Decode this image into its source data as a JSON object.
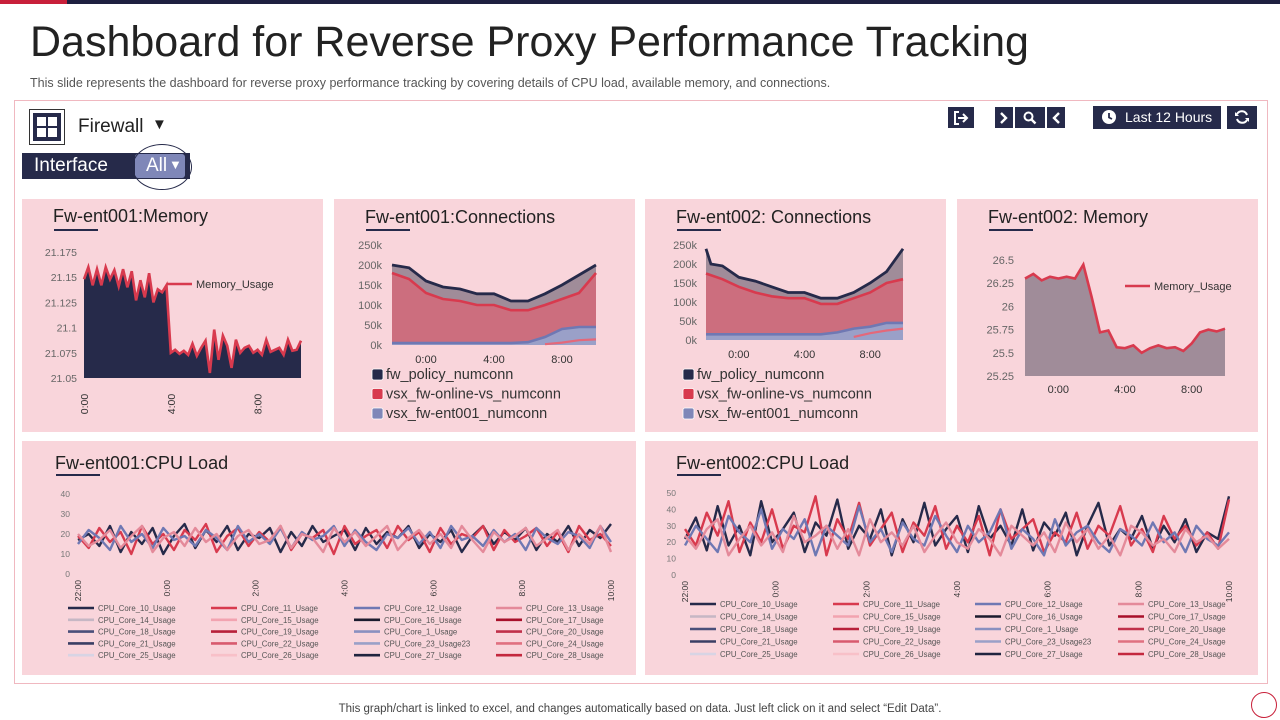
{
  "header": {
    "title": "Dashboard for Reverse Proxy Performance Tracking",
    "subtitle": "This slide represents the dashboard for reverse  proxy performance  tracking by covering details of CPU load, available  memory,  and connections."
  },
  "toolbar": {
    "selector_label": "Firewall",
    "interface_label": "Interface",
    "interface_value": "All",
    "time_range_label": "Last 12 Hours"
  },
  "footer": {
    "note": "This graph/chart is linked to excel,  and changes automatically based on data. Just left click on it and select “Edit Data”."
  },
  "colors": {
    "navy": "#262a4a",
    "red": "#d83a4e",
    "periwinkle": "#7f87b8",
    "panel_bg": "#f9d5db",
    "frame_border": "#f0b8c0"
  },
  "chart_data": [
    {
      "id": "mem1",
      "type": "area",
      "title": "Fw-ent001:Memory",
      "x_ticks": [
        "0:00",
        "4:00",
        "8:00"
      ],
      "x_range": [
        0,
        10
      ],
      "ylim": [
        21.05,
        21.175
      ],
      "y_ticks": [
        "21.175",
        "21.15",
        "21.125",
        "21.1",
        "21.075",
        "21.05"
      ],
      "legend": [
        "Memory_Usage"
      ],
      "series": [
        {
          "name": "Memory_Usage",
          "x": [
            0,
            0.2,
            0.4,
            0.6,
            0.8,
            1,
            1.2,
            1.4,
            1.6,
            1.8,
            2,
            2.2,
            2.4,
            2.6,
            2.8,
            3,
            3.2,
            3.4,
            3.6,
            3.8,
            4,
            4.2,
            4.4,
            4.6,
            4.8,
            5,
            5.2,
            5.4,
            5.6,
            5.8,
            6,
            6.2,
            6.4,
            6.6,
            6.8,
            7,
            7.2,
            7.4,
            7.6,
            7.8,
            8,
            8.2,
            8.4,
            8.6,
            8.8,
            9,
            9.2,
            9.4,
            9.6,
            9.8,
            10
          ],
          "values": [
            21.148,
            21.16,
            21.142,
            21.158,
            21.142,
            21.16,
            21.148,
            21.157,
            21.141,
            21.158,
            21.14,
            21.156,
            21.127,
            21.147,
            21.13,
            21.154,
            21.125,
            21.138,
            21.135,
            21.142,
            21.075,
            21.078,
            21.074,
            21.077,
            21.073,
            21.084,
            21.072,
            21.08,
            21.087,
            21.055,
            21.098,
            21.068,
            21.092,
            21.082,
            21.06,
            21.088,
            21.075,
            21.08,
            21.082,
            21.075,
            21.078,
            21.073,
            21.088,
            21.076,
            21.078,
            21.08,
            21.073,
            21.088,
            21.077,
            21.078,
            21.087
          ]
        }
      ]
    },
    {
      "id": "conn1",
      "type": "area",
      "title": "Fw-ent001:Connections",
      "x_ticks": [
        "0:00",
        "4:00",
        "8:00"
      ],
      "x_range": [
        -2,
        10
      ],
      "ylim": [
        0,
        250000
      ],
      "y_ticks": [
        "250k",
        "200k",
        "150k",
        "100k",
        "50k",
        "0k"
      ],
      "legend": [
        "fw_policy_numconn",
        "vsx_fw-online-vs_numconn",
        "vsx_fw-ent001_numconn"
      ],
      "series": [
        {
          "name": "fw_policy_numconn",
          "x": [
            -2,
            -1,
            0,
            1,
            2,
            3,
            4,
            5,
            6,
            7,
            8,
            9,
            10
          ],
          "values": [
            200000,
            193000,
            160000,
            145000,
            140000,
            128000,
            128000,
            110000,
            110000,
            128000,
            150000,
            175000,
            200000
          ]
        },
        {
          "name": "vsx_fw-online-vs_numconn",
          "x": [
            -2,
            -1,
            0,
            1,
            2,
            3,
            4,
            5,
            6,
            7,
            8,
            9,
            10
          ],
          "values": [
            180000,
            165000,
            130000,
            115000,
            110000,
            100000,
            100000,
            87000,
            87000,
            100000,
            115000,
            130000,
            180000
          ]
        },
        {
          "name": "vsx_fw-ent001_numconn",
          "x": [
            -2,
            -1,
            0,
            1,
            2,
            3,
            4,
            5,
            6,
            7,
            8,
            9,
            10
          ],
          "values": [
            5000,
            5000,
            5000,
            5000,
            5000,
            5000,
            5000,
            5000,
            7000,
            20000,
            40000,
            45000,
            45000
          ]
        }
      ]
    },
    {
      "id": "conn2",
      "type": "area",
      "title": "Fw-ent002: Connections",
      "x_ticks": [
        "0:00",
        "4:00",
        "8:00"
      ],
      "x_range": [
        -2,
        10
      ],
      "ylim": [
        0,
        250000
      ],
      "y_ticks": [
        "250k",
        "200k",
        "150k",
        "100k",
        "50k",
        "0k"
      ],
      "legend": [
        "fw_policy_numconn",
        "vsx_fw-online-vs_numconn",
        "vsx_fw-ent001_numconn"
      ],
      "series": [
        {
          "name": "fw_policy_numconn",
          "x": [
            -2,
            -1.7,
            -1,
            0,
            1,
            2,
            3,
            4,
            5,
            6,
            7,
            8,
            9,
            10
          ],
          "values": [
            240000,
            200000,
            195000,
            165000,
            155000,
            140000,
            125000,
            125000,
            110000,
            110000,
            125000,
            150000,
            180000,
            240000
          ]
        },
        {
          "name": "vsx_fw-online-vs_numconn",
          "x": [
            -2,
            -1,
            0,
            1,
            2,
            3,
            4,
            5,
            6,
            7,
            8,
            9,
            10
          ],
          "values": [
            175000,
            160000,
            140000,
            125000,
            115000,
            110000,
            110000,
            95000,
            95000,
            110000,
            125000,
            150000,
            160000
          ]
        },
        {
          "name": "vsx_fw-ent001_numconn",
          "x": [
            -2,
            -1,
            0,
            1,
            2,
            3,
            4,
            5,
            6,
            7,
            8,
            9,
            10
          ],
          "values": [
            15000,
            15000,
            15000,
            15000,
            15000,
            15000,
            15000,
            15000,
            20000,
            30000,
            35000,
            45000,
            45000
          ]
        }
      ]
    },
    {
      "id": "mem2",
      "type": "area",
      "title": "Fw-ent002: Memory",
      "x_ticks": [
        "0:00",
        "4:00",
        "8:00"
      ],
      "x_range": [
        -2,
        10
      ],
      "ylim": [
        25.25,
        26.5
      ],
      "y_ticks": [
        "26.5",
        "26.25",
        "26",
        "25.75",
        "25.5",
        "25.25"
      ],
      "legend": [
        "Memory_Usage"
      ],
      "series": [
        {
          "name": "Memory_Usage",
          "x": [
            -2,
            -1.5,
            -1,
            -0.5,
            0,
            0.5,
            1,
            1.5,
            2,
            2.5,
            3,
            3.5,
            4,
            4.5,
            5,
            5.5,
            6,
            6.5,
            7,
            7.5,
            8,
            8.5,
            9,
            9.5,
            10
          ],
          "values": [
            26.3,
            26.35,
            26.28,
            26.32,
            26.3,
            26.32,
            26.3,
            26.45,
            26.1,
            25.72,
            25.74,
            25.56,
            25.55,
            25.58,
            25.5,
            25.55,
            25.58,
            25.55,
            25.56,
            25.52,
            25.6,
            25.72,
            25.75,
            25.73,
            25.76
          ]
        }
      ]
    },
    {
      "id": "cpu1",
      "type": "line",
      "title": "Fw-ent001:CPU Load",
      "x_ticks": [
        "22:00",
        "0:00",
        "2:00",
        "4:00",
        "6:00",
        "8:00",
        "10:00"
      ],
      "x_range": [
        22,
        34
      ],
      "ylim": [
        0,
        40
      ],
      "y_ticks": [
        "40",
        "30",
        "20",
        "10",
        "0"
      ],
      "legend": [
        "CPU_Core_10_Usage",
        "CPU_Core_11_Usage",
        "CPU_Core_12_Usage",
        "CPU_Core_13_Usage",
        "CPU_Core_14_Usage",
        "CPU_Core_15_Usage",
        "CPU_Core_16_Usage",
        "CPU_Core_17_Usage",
        "CPU_Core_18_Usage",
        "CPU_Core_19_Usage",
        "CPU_Core_1_Usage",
        "CPU_Core_20_Usage",
        "CPU_Core_21_Usage",
        "CPU_Core_22_Usage",
        "CPU_Core_23_Usage23",
        "CPU_Core_24_Usage",
        "CPU_Core_25_Usage",
        "CPU_Core_26_Usage",
        "CPU_Core_27_Usage",
        "CPU_Core_28_Usage"
      ],
      "series": [
        {
          "name": "CPU_Core_10_Usage",
          "values": [
            17,
            20,
            14,
            24,
            11,
            21,
            15,
            23,
            10,
            19,
            25,
            13,
            22,
            16,
            24,
            12,
            20,
            18,
            23,
            11,
            21,
            14,
            24,
            16,
            19,
            22,
            12,
            23,
            15,
            21,
            18,
            24,
            13,
            20,
            16,
            22,
            11,
            19,
            24,
            15,
            21,
            17,
            23,
            12,
            20,
            16,
            24,
            14,
            22,
            18,
            25
          ]
        },
        {
          "name": "CPU_Core_11_Usage",
          "values": [
            19,
            13,
            23,
            16,
            21,
            10,
            24,
            15,
            20,
            12,
            22,
            17,
            25,
            11,
            19,
            23,
            14,
            21,
            16,
            24,
            12,
            20,
            18,
            22,
            10,
            24,
            15,
            19,
            22,
            13,
            24,
            17,
            21,
            11,
            23,
            15,
            20,
            18,
            24,
            12,
            22,
            16,
            19,
            23,
            14,
            21,
            11,
            24,
            17,
            20,
            14
          ]
        },
        {
          "name": "CPU_Core_12_Usage",
          "values": [
            15,
            22,
            18,
            12,
            24,
            16,
            20,
            13,
            23,
            17,
            19,
            14,
            22,
            18,
            12,
            24,
            16,
            20,
            15,
            23,
            13,
            21,
            17,
            19,
            24,
            14,
            22,
            16,
            12,
            20,
            18,
            23,
            15,
            21,
            13,
            24,
            17,
            19,
            14,
            22,
            16,
            20,
            12,
            23,
            18,
            15,
            21,
            19,
            13,
            24,
            16
          ]
        },
        {
          "name": "CPU_Core_13_Usage",
          "values": [
            20,
            14,
            17,
            22,
            13,
            19,
            24,
            11,
            18,
            21,
            14,
            23,
            16,
            20,
            12,
            19,
            22,
            15,
            17,
            24,
            13,
            20,
            18,
            11,
            23,
            16,
            21,
            14,
            19,
            24,
            12,
            18,
            22,
            15,
            20,
            13,
            24,
            17,
            11,
            21,
            16,
            19,
            23,
            14,
            18,
            22,
            12,
            20,
            15,
            24,
            11
          ]
        }
      ]
    },
    {
      "id": "cpu2",
      "type": "line",
      "title": "Fw-ent002:CPU Load",
      "x_ticks": [
        "22:00",
        "0:00",
        "2:00",
        "4:00",
        "6:00",
        "8:00",
        "10:00"
      ],
      "x_range": [
        22,
        34
      ],
      "ylim": [
        0,
        50
      ],
      "y_ticks": [
        "50",
        "40",
        "30",
        "20",
        "10",
        "0"
      ],
      "legend": [
        "CPU_Core_10_Usage",
        "CPU_Core_11_Usage",
        "CPU_Core_12_Usage",
        "CPU_Core_13_Usage",
        "CPU_Core_14_Usage",
        "CPU_Core_15_Usage",
        "CPU_Core_16_Usage",
        "CPU_Core_17_Usage",
        "CPU_Core_18_Usage",
        "CPU_Core_19_Usage",
        "CPU_Core_1_Usage",
        "CPU_Core_20_Usage",
        "CPU_Core_21_Usage",
        "CPU_Core_22_Usage",
        "CPU_Core_23_Usage23",
        "CPU_Core_24_Usage",
        "CPU_Core_25_Usage",
        "CPU_Core_26_Usage",
        "CPU_Core_27_Usage",
        "CPU_Core_28_Usage"
      ],
      "series": [
        {
          "name": "CPU_Core_10_Usage",
          "values": [
            22,
            35,
            15,
            42,
            18,
            30,
            12,
            45,
            20,
            28,
            38,
            14,
            32,
            24,
            46,
            16,
            30,
            22,
            40,
            12,
            34,
            20,
            44,
            18,
            28,
            36,
            14,
            42,
            22,
            30,
            18,
            40,
            15,
            32,
            24,
            38,
            12,
            30,
            44,
            18,
            28,
            22,
            36,
            16,
            30,
            20,
            34,
            14,
            26,
            22,
            48
          ]
        },
        {
          "name": "CPU_Core_11_Usage",
          "values": [
            28,
            18,
            38,
            24,
            45,
            14,
            32,
            20,
            40,
            16,
            30,
            26,
            48,
            12,
            34,
            22,
            44,
            18,
            28,
            38,
            14,
            32,
            24,
            42,
            16,
            30,
            20,
            36,
            12,
            40,
            22,
            28,
            34,
            14,
            26,
            20,
            38,
            16,
            30,
            24,
            42,
            18,
            28,
            14,
            36,
            22,
            30,
            18,
            26,
            16,
            46
          ]
        },
        {
          "name": "CPU_Core_12_Usage",
          "values": [
            18,
            30,
            22,
            14,
            36,
            26,
            20,
            40,
            16,
            28,
            22,
            34,
            12,
            30,
            24,
            18,
            42,
            20,
            28,
            14,
            32,
            22,
            18,
            36,
            24,
            14,
            30,
            20,
            26,
            40,
            16,
            28,
            22,
            12,
            34,
            18,
            26,
            30,
            20,
            14,
            28,
            24,
            18,
            32,
            20,
            26,
            14,
            30,
            22,
            18,
            26
          ]
        },
        {
          "name": "CPU_Core_13_Usage",
          "values": [
            24,
            16,
            28,
            34,
            12,
            22,
            30,
            18,
            26,
            14,
            36,
            20,
            24,
            30,
            16,
            28,
            12,
            34,
            20,
            26,
            18,
            30,
            14,
            24,
            32,
            20,
            16,
            28,
            22,
            12,
            30,
            24,
            18,
            26,
            14,
            32,
            20,
            28,
            16,
            24,
            12,
            30,
            26,
            18,
            22,
            14,
            28,
            20,
            24,
            16,
            22
          ]
        }
      ]
    }
  ]
}
